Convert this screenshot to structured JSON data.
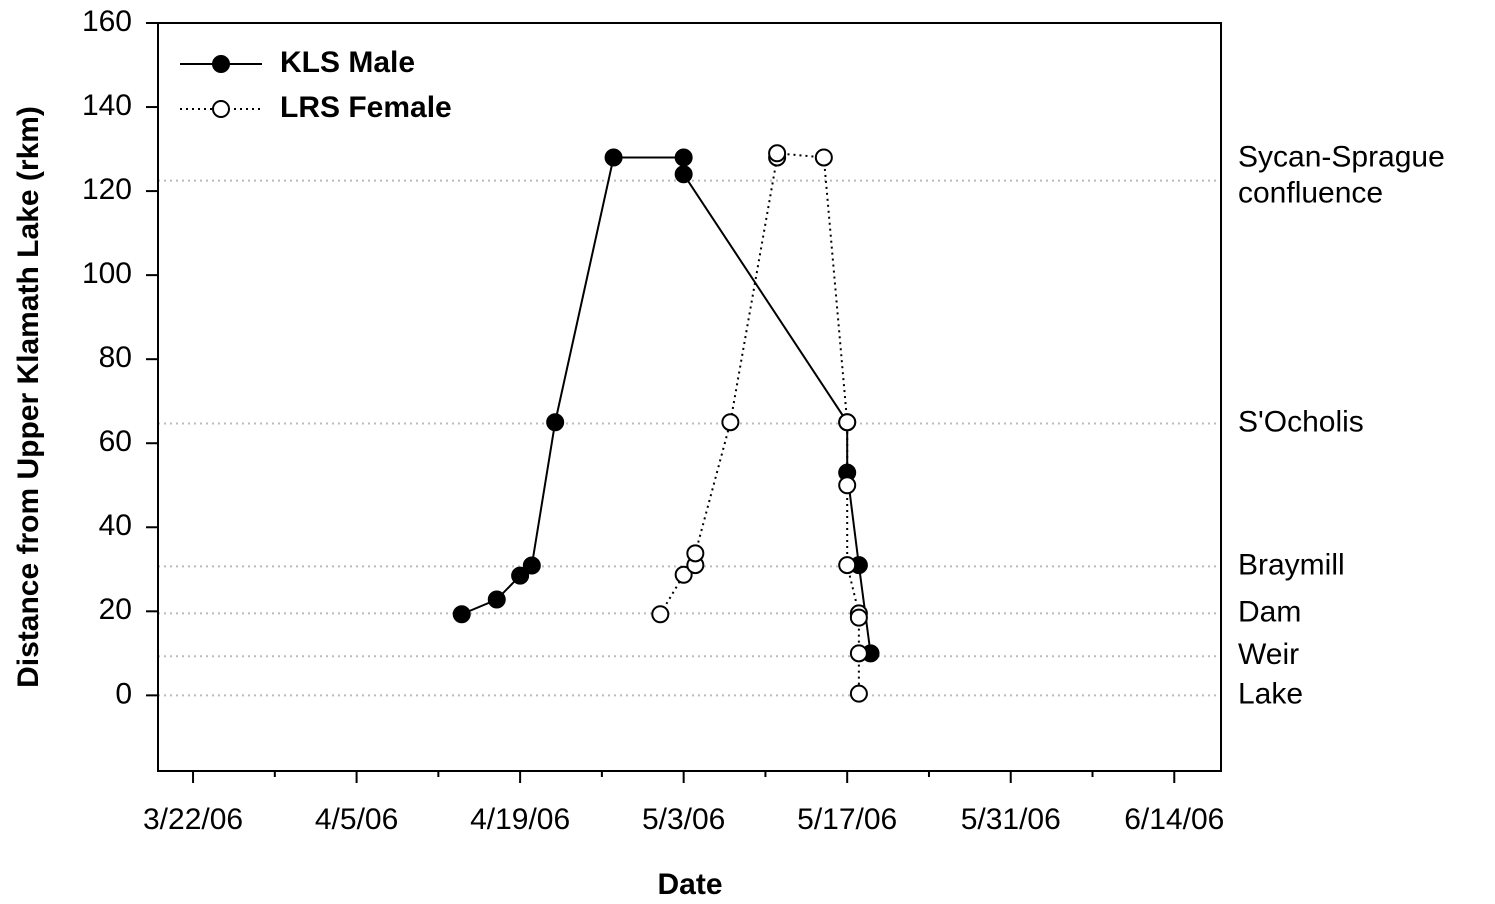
{
  "chart_data": {
    "type": "line",
    "x_label": "Date",
    "y_label": "Distance from Upper Klamath Lake (rkm)",
    "xlim": [
      "3/19/06",
      "6/18/06"
    ],
    "xticks": [
      "3/22/06",
      "4/5/06",
      "4/19/06",
      "5/3/06",
      "5/17/06",
      "5/31/06",
      "6/14/06"
    ],
    "xminorticks": [
      "3/29/06",
      "4/12/06",
      "4/26/06",
      "5/10/06",
      "5/24/06",
      "6/7/06"
    ],
    "ylim": [
      -18,
      160
    ],
    "yticks": [
      0,
      20,
      40,
      60,
      80,
      100,
      120,
      140,
      160
    ],
    "legend": "upper left",
    "reference_lines": [
      {
        "value": 122.5,
        "label": [
          "Sycan-Sprague",
          "confluence"
        ]
      },
      {
        "value": 64.7,
        "label": [
          "S'Ocholis"
        ]
      },
      {
        "value": 30.7,
        "label": [
          "Braymill"
        ]
      },
      {
        "value": 19.5,
        "label": [
          "Dam"
        ]
      },
      {
        "value": 9.3,
        "label": [
          "Weir"
        ]
      },
      {
        "value": 0,
        "label": [
          "Lake"
        ]
      }
    ],
    "series": [
      {
        "name": "KLS Male",
        "color": "#000000",
        "marker_fill": "#000000",
        "dash": "solid",
        "x": [
          "4/14/06",
          "4/17/06",
          "4/19/06",
          "4/20/06",
          "4/22/06",
          "4/27/06",
          "5/3/06",
          "5/3/06",
          "5/17/06",
          "5/17/06",
          "5/18/06",
          "5/19/06"
        ],
        "values": [
          19.3,
          22.8,
          28.5,
          30.9,
          65,
          128,
          128,
          124,
          65,
          53,
          31,
          10
        ]
      },
      {
        "name": "LRS Female",
        "color": "#000000",
        "marker_fill": "#ffffff",
        "dash": "dotted",
        "x": [
          "5/1/06",
          "5/3/06",
          "5/4/06",
          "5/4/06",
          "5/7/06",
          "5/11/06",
          "5/11/06",
          "5/15/06",
          "5/17/06",
          "5/17/06",
          "5/17/06",
          "5/18/06",
          "5/18/06",
          "5/18/06",
          "5/18/06"
        ],
        "values": [
          19.3,
          28.7,
          31,
          33.8,
          65,
          128,
          129,
          128,
          65,
          50,
          31,
          19.5,
          18.5,
          10,
          0.4
        ]
      }
    ]
  }
}
